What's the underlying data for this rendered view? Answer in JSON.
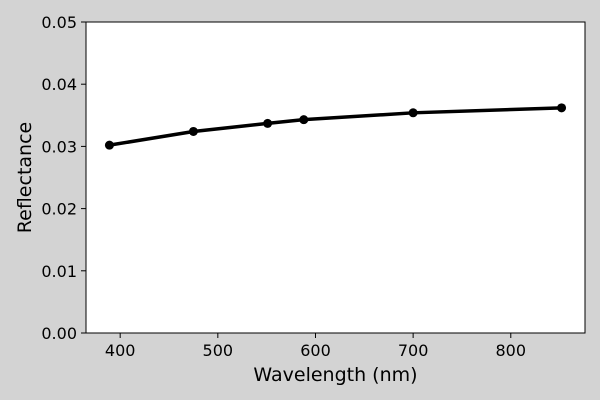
{
  "chart_data": {
    "type": "line",
    "title": "",
    "xlabel": "Wavelength (nm)",
    "ylabel": "Reflectance",
    "xlim": [
      365,
      876
    ],
    "ylim": [
      0.0,
      0.05
    ],
    "xticks": [
      400,
      500,
      600,
      700,
      800
    ],
    "xtick_labels": [
      "400",
      "500",
      "600",
      "700",
      "800"
    ],
    "yticks": [
      0.0,
      0.01,
      0.02,
      0.03,
      0.04,
      0.05
    ],
    "ytick_labels": [
      "0.00",
      "0.01",
      "0.02",
      "0.03",
      "0.04",
      "0.05"
    ],
    "grid": false,
    "series": [
      {
        "x": [
          389,
          475,
          551,
          588,
          700,
          852
        ],
        "values": [
          0.0302,
          0.0324,
          0.0337,
          0.0343,
          0.0354,
          0.0362
        ],
        "color": "#000000",
        "marker": "circle"
      }
    ]
  },
  "colors": {
    "figure_background": "#d3d3d3",
    "plot_background": "#ffffff",
    "line": "#000000"
  }
}
